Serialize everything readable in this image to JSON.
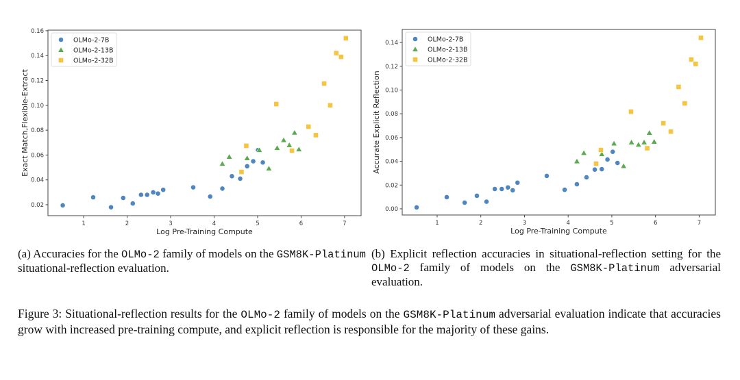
{
  "chart_data": [
    {
      "id": "a",
      "type": "scatter",
      "title": "",
      "xlabel": "Log Pre-Training Compute",
      "ylabel": "Exact Match,Flexible-Extract",
      "xlim": [
        0.18,
        7.38
      ],
      "ylim": [
        0.0112,
        0.1605
      ],
      "xticks": [
        1,
        2,
        3,
        4,
        5,
        6,
        7
      ],
      "xtick_labels": [
        "1",
        "2",
        "3",
        "4",
        "5",
        "6",
        "7"
      ],
      "yticks": [
        0.02,
        0.04,
        0.06,
        0.08,
        0.1,
        0.12,
        0.14,
        0.16
      ],
      "ytick_labels": [
        "0.02",
        "0.04",
        "0.06",
        "0.08",
        "0.10",
        "0.12",
        "0.14",
        "0.16"
      ],
      "grid": false,
      "legend_position": "top-left",
      "series": [
        {
          "name": "OLMo-2-7B",
          "marker": "circle",
          "color": "#4f86c0",
          "x": [
            0.52,
            1.22,
            1.63,
            1.91,
            2.13,
            2.32,
            2.46,
            2.6,
            2.71,
            2.83,
            3.52,
            3.91,
            4.19,
            4.41,
            4.6,
            4.76,
            4.9,
            5.01,
            5.12
          ],
          "y": [
            0.0195,
            0.026,
            0.018,
            0.0255,
            0.021,
            0.028,
            0.028,
            0.03,
            0.029,
            0.032,
            0.034,
            0.0266,
            0.033,
            0.043,
            0.041,
            0.051,
            0.055,
            0.064,
            0.054
          ]
        },
        {
          "name": "OLMo-2-13B",
          "marker": "triangle",
          "color": "#5aab4f",
          "x": [
            4.19,
            4.35,
            4.76,
            5.04,
            5.26,
            5.45,
            5.6,
            5.73,
            5.85,
            5.95
          ],
          "y": [
            0.053,
            0.0586,
            0.0575,
            0.064,
            0.0492,
            0.0657,
            0.072,
            0.068,
            0.078,
            0.0646
          ]
        },
        {
          "name": "OLMo-2-32B",
          "marker": "square",
          "color": "#f4c542",
          "x": [
            4.63,
            4.74,
            5.43,
            5.79,
            6.17,
            6.34,
            6.53,
            6.67,
            6.81,
            6.92,
            7.03
          ],
          "y": [
            0.0464,
            0.0674,
            0.101,
            0.0635,
            0.0828,
            0.076,
            0.1175,
            0.1,
            0.142,
            0.139,
            0.154
          ]
        }
      ]
    },
    {
      "id": "b",
      "type": "scatter",
      "title": "",
      "xlabel": "Log Pre-Training Compute",
      "ylabel": "Accurate Explicit Reflection",
      "xlim": [
        0.2,
        7.37
      ],
      "ylim": [
        -0.0052,
        0.151
      ],
      "xticks": [
        1,
        2,
        3,
        4,
        5,
        6,
        7
      ],
      "xtick_labels": [
        "1",
        "2",
        "3",
        "4",
        "5",
        "6",
        "7"
      ],
      "yticks": [
        0.0,
        0.02,
        0.04,
        0.06,
        0.08,
        0.1,
        0.12,
        0.14
      ],
      "ytick_labels": [
        "0.00",
        "0.02",
        "0.04",
        "0.06",
        "0.08",
        "0.10",
        "0.12",
        "0.14"
      ],
      "grid": false,
      "legend_position": "top-left",
      "series": [
        {
          "name": "OLMo-2-7B",
          "marker": "circle",
          "color": "#4f86c0",
          "x": [
            0.53,
            1.22,
            1.63,
            1.91,
            2.13,
            2.32,
            2.48,
            2.62,
            2.73,
            2.84,
            3.51,
            3.92,
            4.2,
            4.42,
            4.61,
            4.77,
            4.9,
            5.02,
            5.13
          ],
          "y": [
            0.0012,
            0.0098,
            0.0052,
            0.011,
            0.006,
            0.0167,
            0.0167,
            0.018,
            0.0156,
            0.022,
            0.0277,
            0.016,
            0.0207,
            0.0265,
            0.033,
            0.0334,
            0.0415,
            0.048,
            0.0386
          ]
        },
        {
          "name": "OLMo-2-13B",
          "marker": "triangle",
          "color": "#5aab4f",
          "x": [
            4.2,
            4.36,
            4.77,
            5.05,
            5.27,
            5.45,
            5.61,
            5.74,
            5.86,
            5.97
          ],
          "y": [
            0.04,
            0.047,
            0.046,
            0.055,
            0.036,
            0.056,
            0.054,
            0.056,
            0.064,
            0.0565
          ]
        },
        {
          "name": "OLMo-2-32B",
          "marker": "square",
          "color": "#f4c542",
          "x": [
            4.64,
            4.75,
            5.44,
            5.81,
            6.18,
            6.35,
            6.53,
            6.67,
            6.82,
            6.92,
            7.04
          ],
          "y": [
            0.038,
            0.0495,
            0.0818,
            0.051,
            0.072,
            0.065,
            0.1026,
            0.0888,
            0.1257,
            0.122,
            0.144
          ]
        }
      ]
    }
  ],
  "captions": {
    "a": {
      "prefix": "(a) Accuracies for the ",
      "model": "OLMo-2",
      "middle": " family of models on the ",
      "dataset": "GSM8K-Platinum",
      "suffix": " situational-reflection evaluation."
    },
    "b": {
      "prefix": "(b) Explicit reflection accuracies in situational-reflection setting for the ",
      "model": "OLMo-2",
      "middle": " family of models on the ",
      "dataset": "GSM8K-Platinum",
      "suffix": " adversarial evaluation."
    },
    "figure": {
      "prefix": "Figure 3: Situational-reflection results for the ",
      "model": "OLMo-2",
      "middle": " family of models on the ",
      "dataset": "GSM8K-Platinum",
      "suffix": " adversarial evaluation indicate that accuracies grow with increased pre-training compute, and explicit reflection is responsible for the majority of these gains."
    }
  }
}
